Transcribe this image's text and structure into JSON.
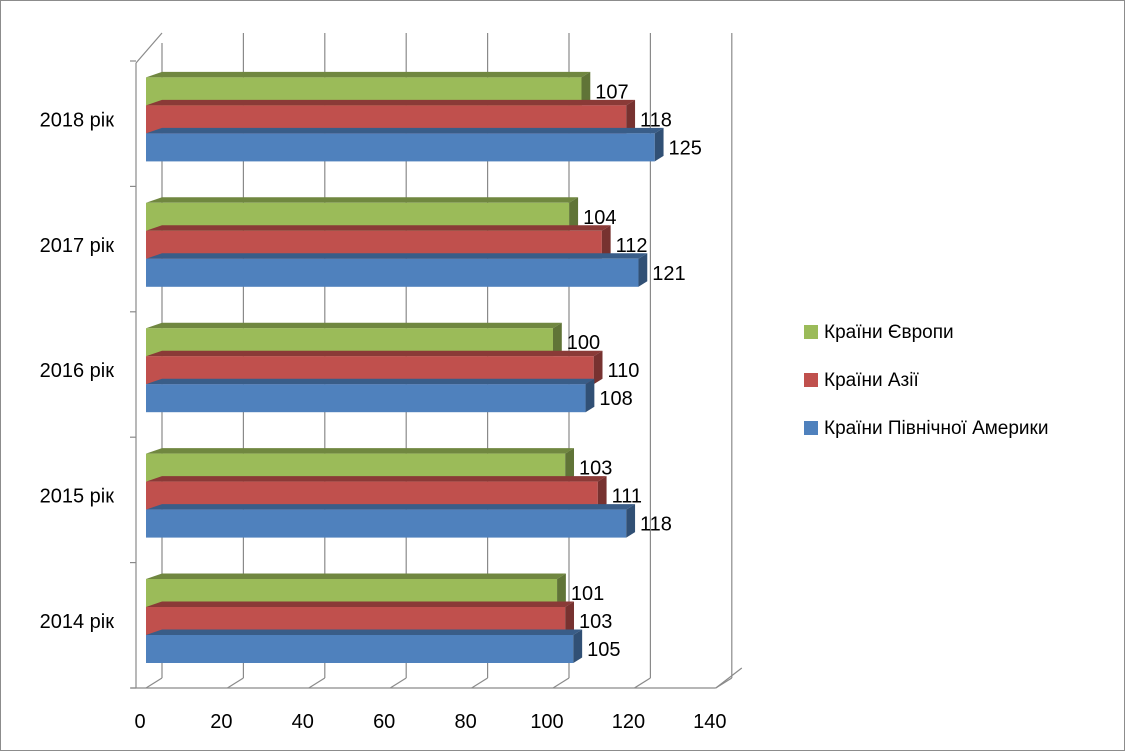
{
  "chart_data": {
    "type": "bar",
    "orientation": "horizontal",
    "style": "3d-clustered",
    "categories": [
      "2014 рік",
      "2015 рік",
      "2016 рік",
      "2017 рік",
      "2018 рік"
    ],
    "series": [
      {
        "name": "Країни Північної Америки",
        "color": "#4F81BD",
        "values": [
          105,
          118,
          108,
          121,
          125
        ]
      },
      {
        "name": "Країни Азії",
        "color": "#C0504D",
        "values": [
          103,
          111,
          110,
          112,
          118
        ]
      },
      {
        "name": "Країни Європи",
        "color": "#9BBB59",
        "values": [
          101,
          103,
          100,
          104,
          107
        ]
      }
    ],
    "xlim": [
      0,
      140
    ],
    "x_ticks": [
      0,
      20,
      40,
      60,
      80,
      100,
      120,
      140
    ],
    "grid": "vertical",
    "legend": {
      "position": "right",
      "order": [
        "Країни Європи",
        "Країни Азії",
        "Країни Північної Америки"
      ]
    },
    "data_labels": true
  }
}
